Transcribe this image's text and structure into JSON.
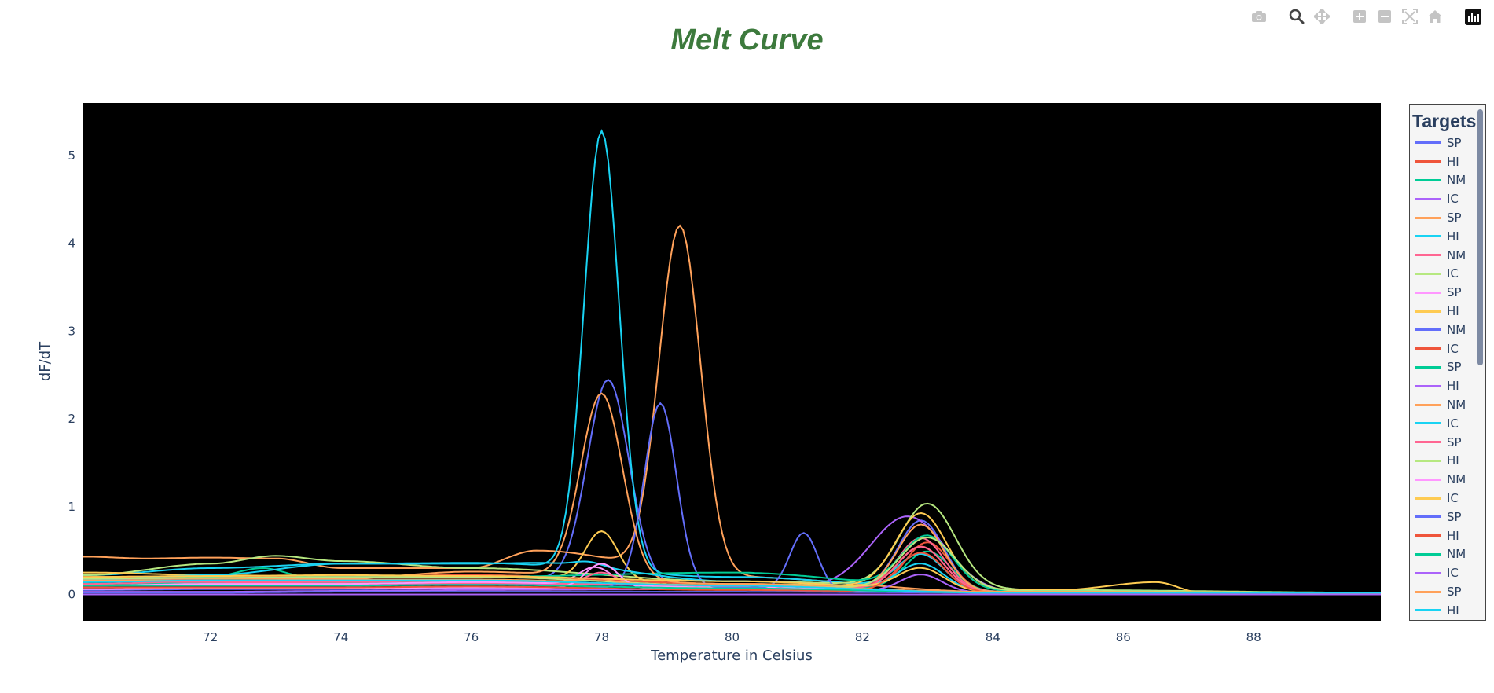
{
  "toolbar": {
    "buttons": [
      {
        "name": "camera-icon",
        "label": "Download plot as a png"
      },
      {
        "name": "zoom-icon",
        "label": "Zoom"
      },
      {
        "name": "pan-icon",
        "label": "Pan"
      },
      {
        "name": "zoom-in-icon",
        "label": "Zoom in"
      },
      {
        "name": "zoom-out-icon",
        "label": "Zoom out"
      },
      {
        "name": "autoscale-icon",
        "label": "Autoscale"
      },
      {
        "name": "home-icon",
        "label": "Reset axes"
      },
      {
        "name": "plotly-logo-icon",
        "label": "Produced with Plotly"
      }
    ]
  },
  "legend": {
    "title": "Targets"
  },
  "chart_data": {
    "type": "line",
    "title": "Melt Curve",
    "xlabel": "Temperature in Celsius",
    "ylabel": "dF/dT",
    "xlim": [
      70.05,
      89.95
    ],
    "ylim": [
      -0.3,
      5.6
    ],
    "xticks": [
      72,
      74,
      76,
      78,
      80,
      82,
      84,
      86,
      88
    ],
    "yticks": [
      0,
      1,
      2,
      3,
      4,
      5
    ],
    "grid": false,
    "plot_background": "#000000",
    "legend_placement": "right",
    "series": [
      {
        "name": "SP",
        "color": "#636efa",
        "baseline": [
          [
            70.1,
            0.16
          ],
          [
            72,
            0.18
          ],
          [
            74,
            0.22
          ],
          [
            76,
            0.2
          ],
          [
            80,
            0.1
          ],
          [
            84,
            0.03
          ],
          [
            90,
            0.02
          ]
        ],
        "peaks": [
          [
            78.1,
            2.3,
            0.45
          ],
          [
            82.9,
            0.8,
            0.5
          ]
        ]
      },
      {
        "name": "HI",
        "color": "#ef553b",
        "baseline": [
          [
            70.1,
            0.2
          ],
          [
            72,
            0.21
          ],
          [
            74,
            0.2
          ],
          [
            76,
            0.21
          ],
          [
            80,
            0.12
          ],
          [
            84,
            0.03
          ],
          [
            90,
            0.02
          ]
        ],
        "peaks": [
          [
            83.0,
            0.55,
            0.48
          ]
        ]
      },
      {
        "name": "NM",
        "color": "#00cc96",
        "baseline": [
          [
            70.1,
            0.12
          ],
          [
            72,
            0.13
          ],
          [
            74,
            0.13
          ],
          [
            76,
            0.15
          ],
          [
            80,
            0.1
          ],
          [
            84,
            0.03
          ],
          [
            90,
            0.02
          ]
        ],
        "peaks": [
          [
            83.0,
            0.45,
            0.5
          ]
        ]
      },
      {
        "name": "IC",
        "color": "#ab63fa",
        "baseline": [
          [
            70.1,
            0.1
          ],
          [
            72,
            0.1
          ],
          [
            74,
            0.1
          ],
          [
            76,
            0.12
          ],
          [
            80,
            0.1
          ],
          [
            84,
            0.02
          ],
          [
            90,
            0.02
          ]
        ],
        "peaks": [
          [
            82.7,
            0.85,
            0.8
          ]
        ]
      },
      {
        "name": "SP",
        "color": "#ffa15a",
        "baseline": [
          [
            70.1,
            0.43
          ],
          [
            71,
            0.41
          ],
          [
            72,
            0.42
          ],
          [
            73,
            0.41
          ],
          [
            74,
            0.3
          ],
          [
            76,
            0.3
          ],
          [
            77,
            0.5
          ],
          [
            80,
            0.2
          ],
          [
            84,
            0.03
          ],
          [
            90,
            0.02
          ]
        ],
        "peaks": [
          [
            79.2,
            3.95,
            0.45
          ]
        ]
      },
      {
        "name": "HI",
        "color": "#19d3f3",
        "baseline": [
          [
            70.1,
            0.22
          ],
          [
            72,
            0.3
          ],
          [
            74,
            0.35
          ],
          [
            76,
            0.36
          ],
          [
            80,
            0.2
          ],
          [
            84,
            0.03
          ],
          [
            90,
            0.02
          ]
        ],
        "peaks": [
          [
            78.0,
            5.0,
            0.38
          ],
          [
            82.9,
            0.4,
            0.5
          ]
        ]
      },
      {
        "name": "NM",
        "color": "#ff6692",
        "baseline": [
          [
            70.1,
            0.15
          ],
          [
            72,
            0.14
          ],
          [
            74,
            0.12
          ],
          [
            76,
            0.13
          ],
          [
            80,
            0.1
          ],
          [
            84,
            0.03
          ],
          [
            90,
            0.02
          ]
        ],
        "peaks": [
          [
            82.9,
            0.6,
            0.5
          ]
        ]
      },
      {
        "name": "IC",
        "color": "#b6e880",
        "baseline": [
          [
            70.1,
            0.22
          ],
          [
            72,
            0.35
          ],
          [
            73,
            0.44
          ],
          [
            74,
            0.38
          ],
          [
            76,
            0.3
          ],
          [
            80,
            0.15
          ],
          [
            85,
            0.05
          ],
          [
            90,
            0.02
          ]
        ],
        "peaks": [
          [
            83.0,
            0.95,
            0.6
          ]
        ]
      },
      {
        "name": "SP",
        "color": "#ff97ff",
        "baseline": [
          [
            70.1,
            0.1
          ],
          [
            72,
            0.12
          ],
          [
            74,
            0.12
          ],
          [
            76,
            0.14
          ],
          [
            80,
            0.08
          ],
          [
            84,
            0.02
          ],
          [
            90,
            0.02
          ]
        ],
        "peaks": [
          [
            77.9,
            0.2,
            0.35
          ]
        ]
      },
      {
        "name": "HI",
        "color": "#fecb52",
        "baseline": [
          [
            70.1,
            0.25
          ],
          [
            72,
            0.22
          ],
          [
            74,
            0.2
          ],
          [
            76,
            0.22
          ],
          [
            80,
            0.12
          ],
          [
            85,
            0.05
          ],
          [
            86.5,
            0.14
          ],
          [
            87.2,
            0.02
          ],
          [
            90,
            0.02
          ]
        ],
        "peaks": [
          [
            78.0,
            0.55,
            0.35
          ],
          [
            82.9,
            0.85,
            0.55
          ]
        ]
      },
      {
        "name": "NM",
        "color": "#636efa",
        "baseline": [
          [
            70.1,
            0.05
          ],
          [
            72,
            0.06
          ],
          [
            74,
            0.06
          ],
          [
            76,
            0.07
          ],
          [
            80,
            0.08
          ],
          [
            82,
            0.03
          ],
          [
            90,
            0.02
          ]
        ],
        "peaks": [
          [
            78.9,
            2.1,
            0.35
          ],
          [
            81.1,
            0.65,
            0.3
          ]
        ]
      },
      {
        "name": "IC",
        "color": "#ef553b",
        "baseline": [
          [
            70.1,
            0.2
          ],
          [
            72,
            0.2
          ],
          [
            74,
            0.21
          ],
          [
            76,
            0.22
          ],
          [
            80,
            0.12
          ],
          [
            84,
            0.03
          ],
          [
            90,
            0.02
          ]
        ],
        "peaks": [
          [
            82.9,
            0.5,
            0.5
          ]
        ]
      },
      {
        "name": "SP",
        "color": "#00cc96",
        "baseline": [
          [
            70.1,
            0.14
          ],
          [
            72,
            0.2
          ],
          [
            72.8,
            0.3
          ],
          [
            73.5,
            0.2
          ],
          [
            76,
            0.2
          ],
          [
            80,
            0.25
          ],
          [
            84,
            0.04
          ],
          [
            90,
            0.02
          ]
        ],
        "peaks": [
          [
            83.0,
            0.6,
            0.55
          ]
        ]
      },
      {
        "name": "HI",
        "color": "#ab63fa",
        "baseline": [
          [
            70.1,
            0.03
          ],
          [
            72,
            0.03
          ],
          [
            74,
            0.04
          ],
          [
            76,
            0.05
          ],
          [
            80,
            0.06
          ],
          [
            84,
            0.02
          ],
          [
            90,
            0.01
          ]
        ],
        "peaks": [
          [
            82.9,
            0.2,
            0.45
          ]
        ]
      },
      {
        "name": "NM",
        "color": "#ffa15a",
        "baseline": [
          [
            70.1,
            0.18
          ],
          [
            72,
            0.18
          ],
          [
            74,
            0.18
          ],
          [
            76,
            0.26
          ],
          [
            80,
            0.12
          ],
          [
            84,
            0.03
          ],
          [
            90,
            0.02
          ]
        ],
        "peaks": [
          [
            78.0,
            2.1,
            0.45
          ],
          [
            82.9,
            0.75,
            0.5
          ]
        ]
      },
      {
        "name": "IC",
        "color": "#19d3f3",
        "baseline": [
          [
            70.1,
            0.17
          ],
          [
            72,
            0.22
          ],
          [
            74,
            0.35
          ],
          [
            76,
            0.35
          ],
          [
            77,
            0.36
          ],
          [
            80,
            0.15
          ],
          [
            84,
            0.03
          ],
          [
            90,
            0.02
          ]
        ],
        "peaks": [
          [
            77.8,
            0.05,
            0.3
          ],
          [
            82.9,
            0.3,
            0.5
          ]
        ]
      },
      {
        "name": "SP",
        "color": "#ff6692",
        "baseline": [
          [
            70.1,
            0.12
          ],
          [
            72,
            0.15
          ],
          [
            74,
            0.14
          ],
          [
            76,
            0.16
          ],
          [
            80,
            0.1
          ],
          [
            84,
            0.03
          ],
          [
            90,
            0.02
          ]
        ],
        "peaks": [
          [
            78.0,
            0.12,
            0.3
          ],
          [
            82.9,
            0.5,
            0.5
          ]
        ]
      },
      {
        "name": "HI",
        "color": "#b6e880",
        "baseline": [
          [
            70.1,
            0.18
          ],
          [
            72,
            0.19
          ],
          [
            74,
            0.2
          ],
          [
            76,
            0.2
          ],
          [
            80,
            0.1
          ],
          [
            84,
            0.04
          ],
          [
            90,
            0.02
          ]
        ],
        "peaks": [
          [
            83.0,
            0.6,
            0.6
          ]
        ]
      },
      {
        "name": "NM",
        "color": "#ff97ff",
        "baseline": [
          [
            70.1,
            0.06
          ],
          [
            72,
            0.07
          ],
          [
            74,
            0.07
          ],
          [
            76,
            0.08
          ],
          [
            80,
            0.06
          ],
          [
            84,
            0.02
          ],
          [
            90,
            0.02
          ]
        ],
        "peaks": [
          [
            78.0,
            0.28,
            0.35
          ]
        ]
      },
      {
        "name": "IC",
        "color": "#fecb52",
        "baseline": [
          [
            70.1,
            0.2
          ],
          [
            72,
            0.21
          ],
          [
            74,
            0.22
          ],
          [
            76,
            0.21
          ],
          [
            80,
            0.15
          ],
          [
            84,
            0.03
          ],
          [
            90,
            0.02
          ]
        ],
        "peaks": [
          [
            82.9,
            0.25,
            0.5
          ]
        ]
      },
      {
        "name": "SP",
        "color": "#636efa",
        "baseline": [
          [
            70.1,
            0.02
          ],
          [
            72,
            0.02
          ],
          [
            74,
            0.03
          ],
          [
            76,
            0.03
          ],
          [
            80,
            0.03
          ],
          [
            84,
            0.02
          ],
          [
            90,
            0.01
          ]
        ],
        "peaks": []
      },
      {
        "name": "HI",
        "color": "#ef553b",
        "baseline": [
          [
            70.1,
            0.08
          ],
          [
            72,
            0.08
          ],
          [
            74,
            0.08
          ],
          [
            76,
            0.09
          ],
          [
            80,
            0.05
          ],
          [
            84,
            0.02
          ],
          [
            90,
            0.02
          ]
        ],
        "peaks": [
          [
            82.9,
            0.45,
            0.5
          ]
        ]
      },
      {
        "name": "NM",
        "color": "#00cc96",
        "baseline": [
          [
            70.1,
            0.1
          ],
          [
            72,
            0.1
          ],
          [
            74,
            0.1
          ],
          [
            76,
            0.11
          ],
          [
            80,
            0.07
          ],
          [
            84,
            0.02
          ],
          [
            90,
            0.02
          ]
        ],
        "peaks": []
      },
      {
        "name": "IC",
        "color": "#ab63fa",
        "baseline": [
          [
            70.1,
            0.0
          ],
          [
            72,
            0.0
          ],
          [
            74,
            0.0
          ],
          [
            76,
            0.0
          ],
          [
            80,
            0.0
          ],
          [
            84,
            0.0
          ],
          [
            90,
            0.0
          ]
        ],
        "peaks": []
      },
      {
        "name": "SP",
        "color": "#ffa15a",
        "baseline": [
          [
            70.1,
            0.16
          ],
          [
            72,
            0.16
          ],
          [
            74,
            0.17
          ],
          [
            76,
            0.17
          ],
          [
            80,
            0.1
          ],
          [
            84,
            0.03
          ],
          [
            90,
            0.02
          ]
        ],
        "peaks": [
          [
            77.9,
            0.05,
            0.3
          ]
        ]
      },
      {
        "name": "HI",
        "color": "#19d3f3",
        "baseline": [
          [
            70.1,
            0.14
          ],
          [
            72,
            0.16
          ],
          [
            74,
            0.16
          ],
          [
            76,
            0.16
          ],
          [
            80,
            0.1
          ],
          [
            84,
            0.02
          ],
          [
            90,
            0.02
          ]
        ],
        "peaks": []
      }
    ]
  }
}
